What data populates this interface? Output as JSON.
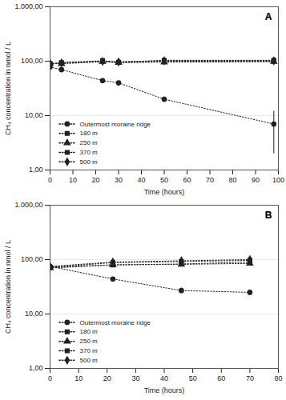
{
  "chart_data": [
    {
      "type": "line",
      "title": "A",
      "x_label": "Time (hours)",
      "y_label": "CH₄ concentration in nmol / L",
      "log": "y",
      "grid": true,
      "legend": "lower left",
      "line_style": "dotted",
      "xlim": [
        0,
        100
      ],
      "xticks": [
        0,
        10,
        20,
        30,
        40,
        50,
        60,
        70,
        80,
        90,
        100
      ],
      "ylim": [
        1,
        1000
      ],
      "yticks": [
        {
          "value": 1,
          "label": "1,00"
        },
        {
          "value": 10,
          "label": "10,00"
        },
        {
          "value": 100,
          "label": "100,00"
        },
        {
          "value": 1000,
          "label": "1.000,00"
        }
      ],
      "x": [
        0,
        5,
        23,
        30,
        50,
        98
      ],
      "series": [
        {
          "name": "Outermost moraine ridge",
          "color": "#222222",
          "marker": "circle",
          "values": [
            78,
            70,
            44,
            40,
            20,
            7
          ],
          "error": [
            null,
            null,
            null,
            null,
            2,
            5
          ]
        },
        {
          "name": "180 m",
          "color": "#222222",
          "marker": "square",
          "values": [
            90,
            92,
            100,
            95,
            100,
            100
          ],
          "error": [
            null,
            null,
            null,
            null,
            null,
            null
          ]
        },
        {
          "name": "250 m",
          "color": "#222222",
          "marker": "triangle",
          "values": [
            92,
            90,
            98,
            94,
            96,
            98
          ],
          "error": [
            null,
            null,
            null,
            null,
            null,
            null
          ]
        },
        {
          "name": "370 m",
          "color": "#222222",
          "marker": "square",
          "values": [
            88,
            94,
            102,
            96,
            104,
            104
          ],
          "error": [
            null,
            null,
            null,
            null,
            null,
            null
          ]
        },
        {
          "name": "500 m",
          "color": "#222222",
          "marker": "diamond",
          "values": [
            90,
            93,
            99,
            97,
            102,
            102
          ],
          "error": [
            null,
            null,
            null,
            null,
            null,
            null
          ]
        }
      ]
    },
    {
      "type": "line",
      "title": "B",
      "x_label": "Time (hours)",
      "y_label": "CH₄ concentration in nmol / L",
      "log": "y",
      "grid": true,
      "legend": "lower left",
      "line_style": "dotted",
      "xlim": [
        0,
        80
      ],
      "xticks": [
        0,
        10,
        20,
        30,
        40,
        50,
        60,
        70,
        80
      ],
      "ylim": [
        1,
        1000
      ],
      "yticks": [
        {
          "value": 1,
          "label": "1,00"
        },
        {
          "value": 10,
          "label": "10,00"
        },
        {
          "value": 100,
          "label": "100,00"
        },
        {
          "value": 1000,
          "label": "1.000,00"
        }
      ],
      "x": [
        0,
        22,
        46,
        70
      ],
      "series": [
        {
          "name": "Outermost moraine ridge",
          "color": "#222222",
          "marker": "circle",
          "values": [
            75,
            44,
            27,
            25
          ],
          "error": [
            null,
            null,
            3,
            2
          ]
        },
        {
          "name": "180 m",
          "color": "#222222",
          "marker": "square",
          "values": [
            72,
            80,
            83,
            90
          ],
          "error": [
            null,
            null,
            null,
            null
          ]
        },
        {
          "name": "250 m",
          "color": "#222222",
          "marker": "triangle",
          "values": [
            70,
            80,
            82,
            85
          ],
          "error": [
            null,
            null,
            null,
            null
          ]
        },
        {
          "name": "370 m",
          "color": "#222222",
          "marker": "square",
          "values": [
            72,
            88,
            92,
            97
          ],
          "error": [
            null,
            null,
            null,
            null
          ]
        },
        {
          "name": "500 m",
          "color": "#222222",
          "marker": "diamond",
          "values": [
            75,
            90,
            95,
            100
          ],
          "error": [
            null,
            null,
            null,
            null
          ]
        }
      ]
    }
  ]
}
